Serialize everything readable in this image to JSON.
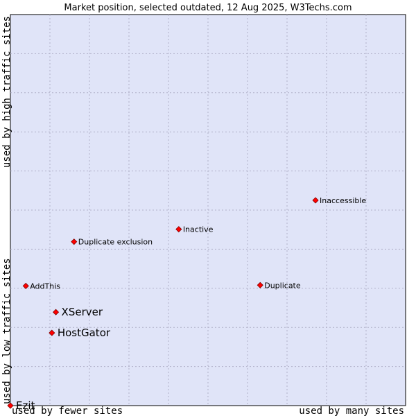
{
  "chart_data": {
    "type": "scatter",
    "title": "Market position, selected outdated, 12 Aug 2025, W3Techs.com",
    "xlabel_left": "used by fewer sites",
    "xlabel_right": "used by many sites",
    "ylabel_bottom": "used by low traffic sites",
    "ylabel_top": "used by high traffic sites",
    "grid": true,
    "colors": {
      "plot_background": "#e0e4f8",
      "grid": "#b0b0c8",
      "marker": "#ff0000",
      "marker_edge": "#800000"
    },
    "points": [
      {
        "label": "Ezit",
        "x": 0.0,
        "y": 0.0,
        "emphasis": true
      },
      {
        "label": "HostGator",
        "x": 0.105,
        "y": 0.186,
        "emphasis": true
      },
      {
        "label": "XServer",
        "x": 0.115,
        "y": 0.239,
        "emphasis": true
      },
      {
        "label": "AddThis",
        "x": 0.039,
        "y": 0.306,
        "emphasis": false
      },
      {
        "label": "Duplicate",
        "x": 0.632,
        "y": 0.308,
        "emphasis": false
      },
      {
        "label": "Duplicate exclusion",
        "x": 0.161,
        "y": 0.419,
        "emphasis": false
      },
      {
        "label": "Inactive",
        "x": 0.426,
        "y": 0.451,
        "emphasis": false
      },
      {
        "label": "Inaccessible",
        "x": 0.772,
        "y": 0.525,
        "emphasis": false
      }
    ]
  }
}
